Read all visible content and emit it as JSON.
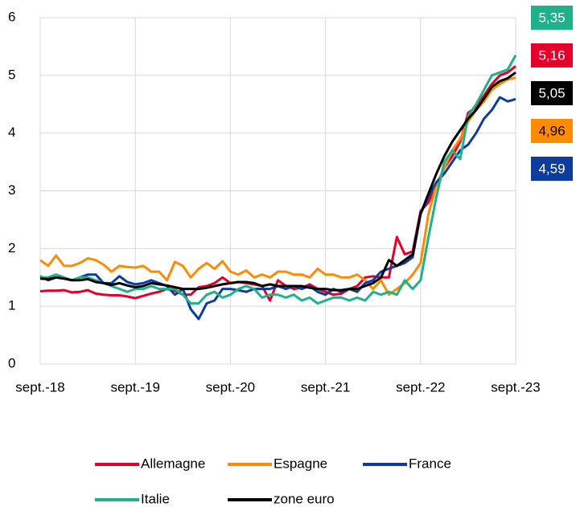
{
  "chart_data": {
    "type": "line",
    "categories": [
      "sept.-18",
      null,
      null,
      null,
      null,
      null,
      null,
      null,
      null,
      null,
      null,
      null,
      "sept.-19",
      null,
      null,
      null,
      null,
      null,
      null,
      null,
      null,
      null,
      null,
      null,
      "sept.-20",
      null,
      null,
      null,
      null,
      null,
      null,
      null,
      null,
      null,
      null,
      null,
      "sept.-21",
      null,
      null,
      null,
      null,
      null,
      null,
      null,
      null,
      null,
      null,
      null,
      "sept.-22",
      null,
      null,
      null,
      null,
      null,
      null,
      null,
      null,
      null,
      null,
      null,
      "sept.-23"
    ],
    "ylim": [
      0,
      6
    ],
    "yticks": [
      0,
      1,
      2,
      3,
      4,
      5,
      6
    ],
    "grid": true,
    "series": [
      {
        "name": "Allemagne",
        "color": "#e4002b",
        "values": [
          1.26,
          1.27,
          1.27,
          1.28,
          1.24,
          1.25,
          1.28,
          1.22,
          1.2,
          1.19,
          1.19,
          1.17,
          1.14,
          1.18,
          1.22,
          1.25,
          1.3,
          1.27,
          1.2,
          1.2,
          1.33,
          1.35,
          1.4,
          1.5,
          1.4,
          1.42,
          1.4,
          1.38,
          1.35,
          1.1,
          1.45,
          1.35,
          1.3,
          1.32,
          1.38,
          1.3,
          1.25,
          1.2,
          1.22,
          1.3,
          1.35,
          1.5,
          1.52,
          1.5,
          1.5,
          2.2,
          1.9,
          1.95,
          2.65,
          2.8,
          3.1,
          3.4,
          3.6,
          3.85,
          4.35,
          4.45,
          4.65,
          4.85,
          5.0,
          5.05,
          5.16
        ],
        "value_labels": [
          null,
          null,
          null,
          null,
          null,
          null,
          null,
          null,
          null,
          null,
          null,
          null,
          null,
          null,
          null,
          null,
          null,
          null,
          null,
          null,
          null,
          null,
          null,
          null,
          null,
          null,
          null,
          null,
          null,
          null,
          null,
          null,
          null,
          null,
          null,
          null,
          null,
          null,
          null,
          null,
          null,
          null,
          null,
          null,
          null,
          null,
          null,
          null,
          null,
          null,
          null,
          null,
          null,
          null,
          null,
          null,
          null,
          null,
          null,
          null,
          "5,16"
        ]
      },
      {
        "name": "Espagne",
        "color": "#ff8c00",
        "values": [
          1.8,
          1.7,
          1.88,
          1.7,
          1.7,
          1.75,
          1.83,
          1.8,
          1.72,
          1.6,
          1.7,
          1.68,
          1.67,
          1.7,
          1.6,
          1.6,
          1.45,
          1.77,
          1.7,
          1.5,
          1.65,
          1.75,
          1.65,
          1.78,
          1.6,
          1.55,
          1.62,
          1.5,
          1.55,
          1.5,
          1.6,
          1.6,
          1.55,
          1.55,
          1.5,
          1.65,
          1.55,
          1.55,
          1.5,
          1.5,
          1.55,
          1.45,
          1.3,
          1.45,
          1.2,
          1.3,
          1.4,
          1.55,
          1.75,
          2.6,
          3.1,
          3.4,
          3.7,
          3.9,
          4.2,
          4.4,
          4.55,
          4.75,
          4.85,
          4.93,
          4.96
        ],
        "value_labels": [
          null,
          null,
          null,
          null,
          null,
          null,
          null,
          null,
          null,
          null,
          null,
          null,
          null,
          null,
          null,
          null,
          null,
          null,
          null,
          null,
          null,
          null,
          null,
          null,
          null,
          null,
          null,
          null,
          null,
          null,
          null,
          null,
          null,
          null,
          null,
          null,
          null,
          null,
          null,
          null,
          null,
          null,
          null,
          null,
          null,
          null,
          null,
          null,
          null,
          null,
          null,
          null,
          null,
          null,
          null,
          null,
          null,
          null,
          null,
          null,
          "4,96"
        ]
      },
      {
        "name": "France",
        "color": "#0d3d9c",
        "values": [
          1.52,
          1.45,
          1.5,
          1.48,
          1.45,
          1.5,
          1.55,
          1.55,
          1.4,
          1.4,
          1.52,
          1.42,
          1.38,
          1.4,
          1.45,
          1.4,
          1.35,
          1.2,
          1.3,
          0.95,
          0.78,
          1.05,
          1.1,
          1.3,
          1.3,
          1.28,
          1.25,
          1.3,
          1.3,
          1.3,
          1.35,
          1.3,
          1.35,
          1.3,
          1.35,
          1.25,
          1.2,
          1.3,
          1.25,
          1.3,
          1.25,
          1.4,
          1.45,
          1.6,
          1.65,
          1.7,
          1.75,
          1.85,
          2.6,
          2.9,
          3.15,
          3.3,
          3.5,
          3.7,
          3.8,
          4.0,
          4.25,
          4.4,
          4.62,
          4.55,
          4.59
        ],
        "value_labels": [
          null,
          null,
          null,
          null,
          null,
          null,
          null,
          null,
          null,
          null,
          null,
          null,
          null,
          null,
          null,
          null,
          null,
          null,
          null,
          null,
          null,
          null,
          null,
          null,
          null,
          null,
          null,
          null,
          null,
          null,
          null,
          null,
          null,
          null,
          null,
          null,
          null,
          null,
          null,
          null,
          null,
          null,
          null,
          null,
          null,
          null,
          null,
          null,
          null,
          null,
          null,
          null,
          null,
          null,
          null,
          null,
          null,
          null,
          null,
          null,
          "4,59"
        ]
      },
      {
        "name": "Italie",
        "color": "#1fb28a",
        "values": [
          1.5,
          1.5,
          1.55,
          1.5,
          1.45,
          1.5,
          1.5,
          1.45,
          1.4,
          1.35,
          1.3,
          1.25,
          1.3,
          1.3,
          1.35,
          1.3,
          1.3,
          1.3,
          1.2,
          1.05,
          1.05,
          1.2,
          1.25,
          1.15,
          1.2,
          1.3,
          1.35,
          1.3,
          1.15,
          1.2,
          1.2,
          1.15,
          1.2,
          1.1,
          1.15,
          1.05,
          1.1,
          1.15,
          1.15,
          1.1,
          1.15,
          1.1,
          1.25,
          1.2,
          1.25,
          1.2,
          1.45,
          1.3,
          1.45,
          2.2,
          2.9,
          3.5,
          3.7,
          3.55,
          4.3,
          4.5,
          4.75,
          5.0,
          5.05,
          5.1,
          5.35
        ],
        "value_labels": [
          null,
          null,
          null,
          null,
          null,
          null,
          null,
          null,
          null,
          null,
          null,
          null,
          null,
          null,
          null,
          null,
          null,
          null,
          null,
          null,
          null,
          null,
          null,
          null,
          null,
          null,
          null,
          null,
          null,
          null,
          null,
          null,
          null,
          null,
          null,
          null,
          null,
          null,
          null,
          null,
          null,
          null,
          null,
          null,
          null,
          null,
          null,
          null,
          null,
          null,
          null,
          null,
          null,
          null,
          null,
          null,
          null,
          null,
          null,
          null,
          "5,35"
        ]
      },
      {
        "name": "zone euro",
        "color": "#000000",
        "values": [
          1.48,
          1.47,
          1.5,
          1.48,
          1.45,
          1.45,
          1.47,
          1.42,
          1.4,
          1.37,
          1.4,
          1.36,
          1.33,
          1.35,
          1.4,
          1.38,
          1.36,
          1.33,
          1.3,
          1.3,
          1.3,
          1.32,
          1.35,
          1.38,
          1.4,
          1.42,
          1.42,
          1.4,
          1.35,
          1.38,
          1.35,
          1.35,
          1.35,
          1.35,
          1.32,
          1.3,
          1.3,
          1.28,
          1.28,
          1.3,
          1.3,
          1.35,
          1.4,
          1.5,
          1.8,
          1.7,
          1.8,
          1.9,
          2.6,
          2.95,
          3.3,
          3.6,
          3.85,
          4.05,
          4.25,
          4.4,
          4.6,
          4.8,
          4.9,
          4.95,
          5.05
        ],
        "value_labels": [
          null,
          null,
          null,
          null,
          null,
          null,
          null,
          null,
          null,
          null,
          null,
          null,
          null,
          null,
          null,
          null,
          null,
          null,
          null,
          null,
          null,
          null,
          null,
          null,
          null,
          null,
          null,
          null,
          null,
          null,
          null,
          null,
          null,
          null,
          null,
          null,
          null,
          null,
          null,
          null,
          null,
          null,
          null,
          null,
          null,
          null,
          null,
          null,
          null,
          null,
          null,
          null,
          null,
          null,
          null,
          null,
          null,
          null,
          null,
          null,
          "5,05"
        ]
      }
    ]
  }
}
